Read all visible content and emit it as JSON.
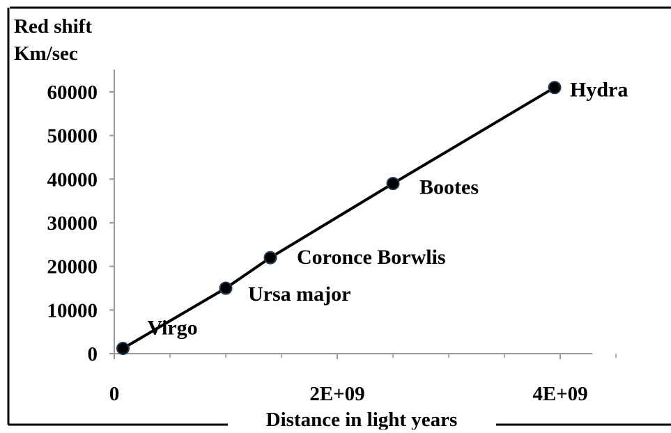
{
  "chart_data": {
    "type": "line",
    "ylabel_line1": "Red shift",
    "ylabel_line2": "Km/sec",
    "xlabel": "Distance in light years",
    "xlim": [
      0,
      4500000000
    ],
    "ylim": [
      0,
      65000
    ],
    "x_ticks": [
      {
        "value": 0,
        "label": "0"
      },
      {
        "value": 2000000000,
        "label": "2E+09"
      },
      {
        "value": 4000000000,
        "label": "4E+09"
      }
    ],
    "y_ticks": [
      {
        "value": 0,
        "label": "0"
      },
      {
        "value": 10000,
        "label": "10000"
      },
      {
        "value": 20000,
        "label": "20000"
      },
      {
        "value": 30000,
        "label": "30000"
      },
      {
        "value": 40000,
        "label": "40000"
      },
      {
        "value": 50000,
        "label": "50000"
      },
      {
        "value": 60000,
        "label": "60000"
      }
    ],
    "series": [
      {
        "points": [
          {
            "label": "Virgo",
            "x": 78000000,
            "y": 1200
          },
          {
            "label": "Ursa major",
            "x": 1000000000,
            "y": 15000
          },
          {
            "label": "Coronce Borwlis",
            "x": 1400000000,
            "y": 22000
          },
          {
            "label": "Bootes",
            "x": 2500000000,
            "y": 39000
          },
          {
            "label": "Hydra",
            "x": 3950000000,
            "y": 61000
          }
        ]
      }
    ],
    "grid": false,
    "legend": "none",
    "colors": {
      "line": "#000000",
      "marker_fill": "#000000",
      "marker_stroke": "#1f3a5a",
      "text": "#000000"
    }
  }
}
